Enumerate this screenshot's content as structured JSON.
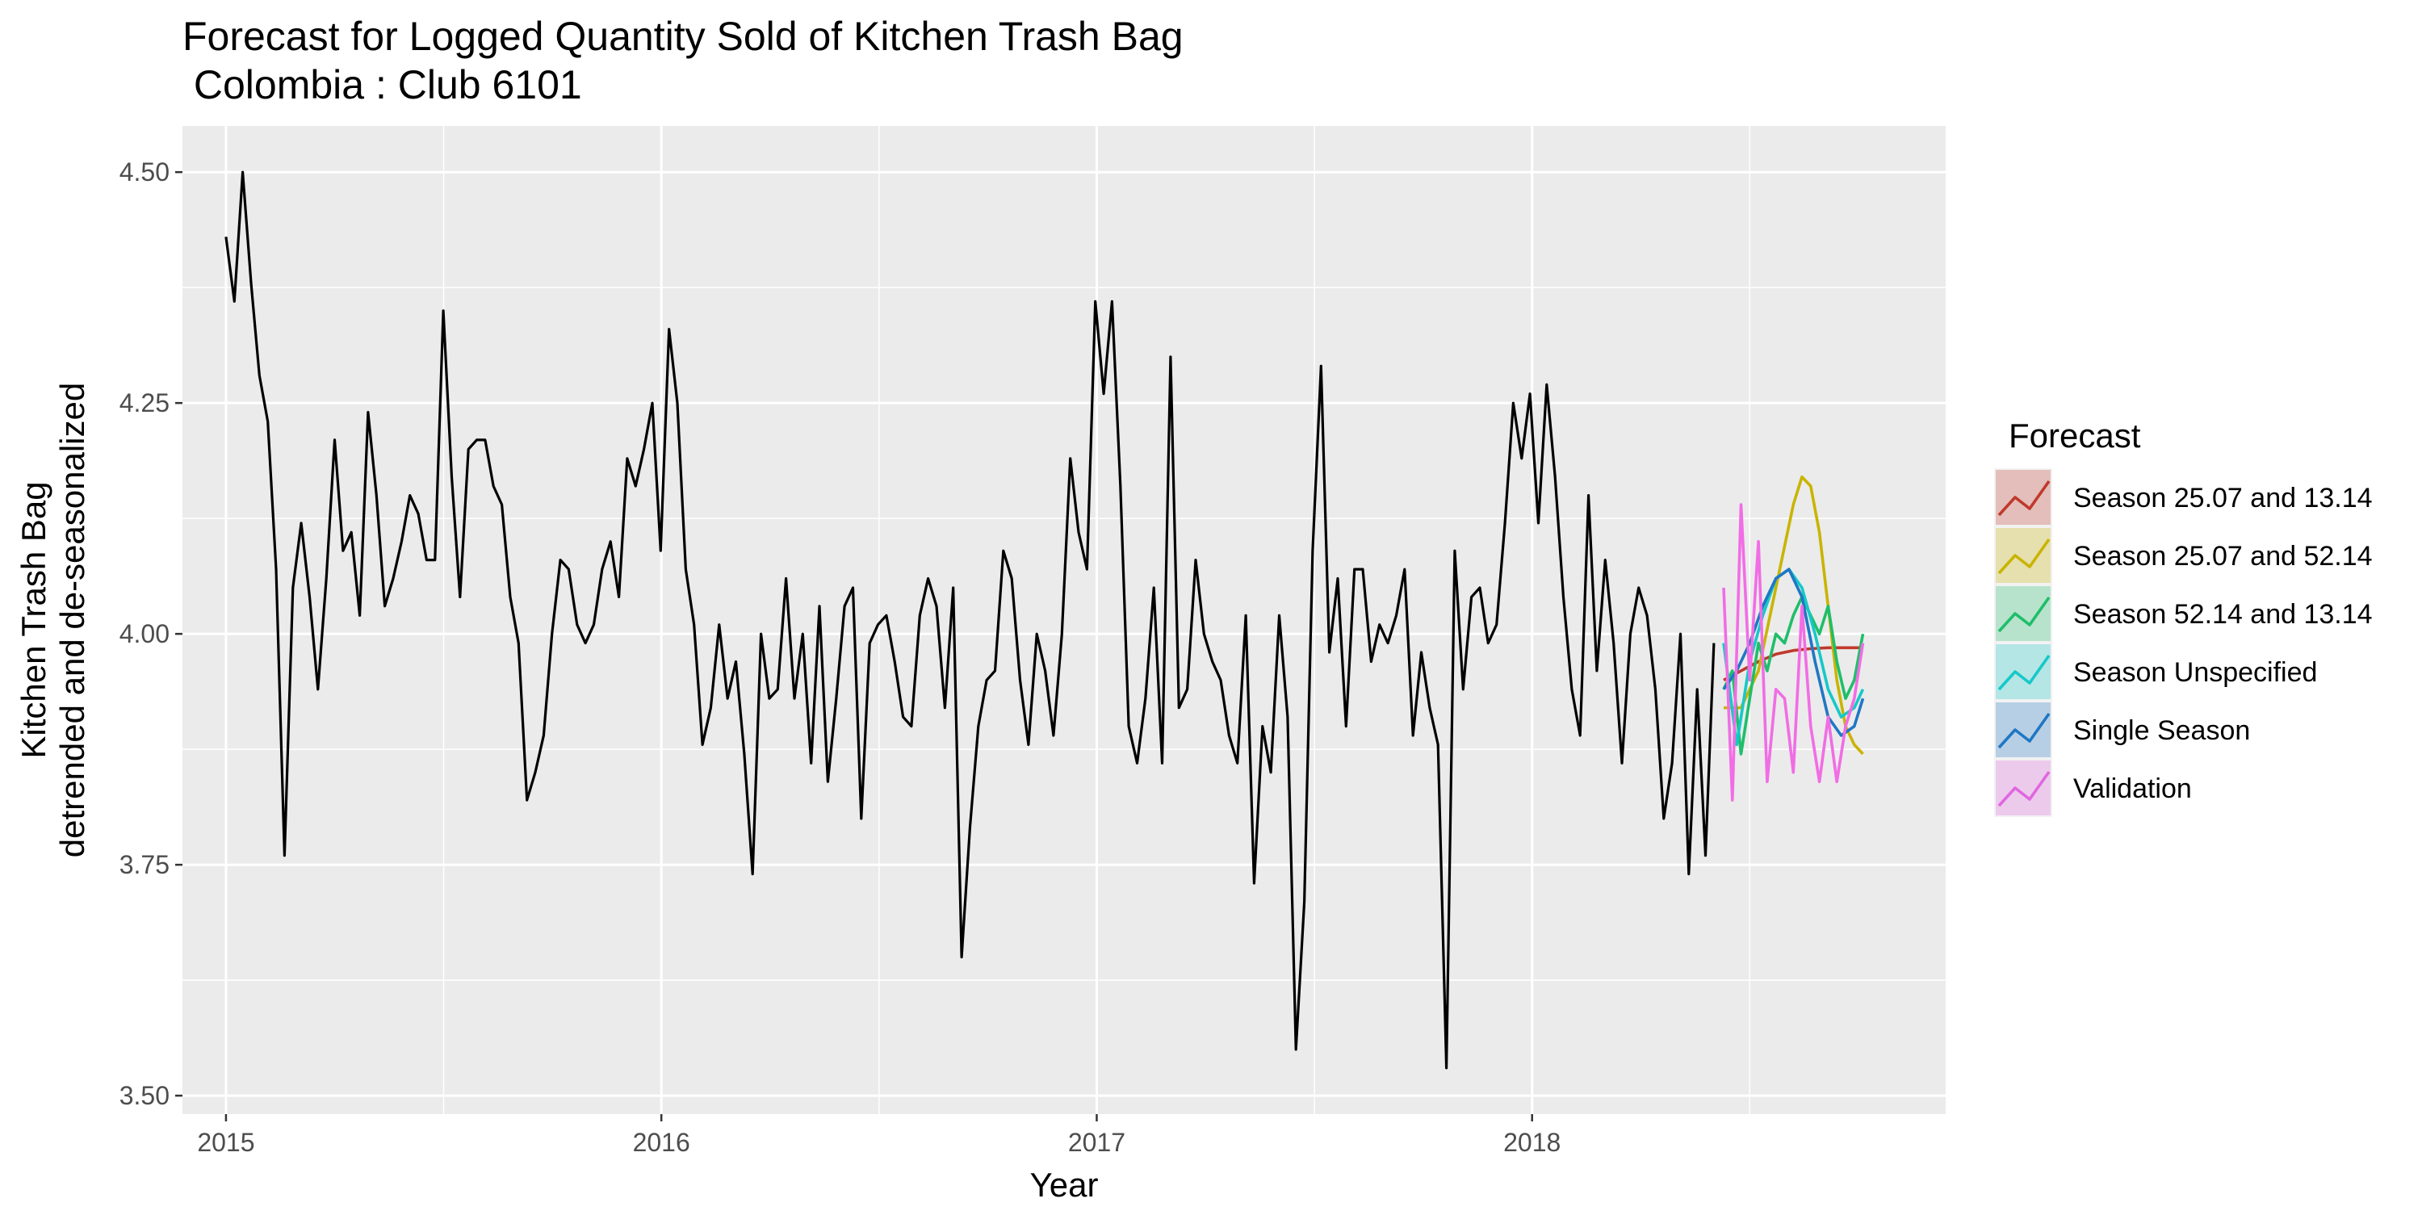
{
  "chart_data": {
    "type": "line",
    "title": "Forecast for Logged Quantity Sold of Kitchen Trash Bag",
    "subtitle": " Colombia : Club 6101",
    "xlabel": "Year",
    "ylabel_lines": [
      "Kitchen Trash Bag",
      "detrended and de-seasonalized"
    ],
    "xlim": [
      2014.9,
      2018.95
    ],
    "ylim": [
      3.48,
      4.55
    ],
    "x_ticks": [
      2015,
      2016,
      2017,
      2018
    ],
    "x_tick_labels": [
      "2015",
      "2016",
      "2017",
      "2018"
    ],
    "y_ticks": [
      3.5,
      3.75,
      4.0,
      4.25,
      4.5
    ],
    "y_tick_labels": [
      "3.50",
      "3.75",
      "4.00",
      "4.25",
      "4.50"
    ],
    "grid": true,
    "legend": {
      "title": "Forecast",
      "placement": "right",
      "entries": [
        {
          "label": "Season 25.07 and 13.14",
          "color": "#c0392b"
        },
        {
          "label": "Season 25.07 and 52.14",
          "color": "#c9b400"
        },
        {
          "label": "Season 52.14 and 13.14",
          "color": "#1fbe6a"
        },
        {
          "label": "Season Unspecified",
          "color": "#16c8c8"
        },
        {
          "label": "Single Season",
          "color": "#1f77c4"
        },
        {
          "label": "Validation",
          "color": "#e066e0"
        }
      ]
    },
    "history": {
      "color": "#000000",
      "start": 2015.0,
      "step": 0.0192,
      "values": [
        4.43,
        4.36,
        4.5,
        4.38,
        4.28,
        4.23,
        4.07,
        3.76,
        4.05,
        4.12,
        4.04,
        3.94,
        4.06,
        4.21,
        4.09,
        4.11,
        4.02,
        4.24,
        4.15,
        4.03,
        4.06,
        4.1,
        4.15,
        4.13,
        4.08,
        4.08,
        4.35,
        4.17,
        4.04,
        4.2,
        4.21,
        4.21,
        4.16,
        4.14,
        4.04,
        3.99,
        3.82,
        3.85,
        3.89,
        4.0,
        4.08,
        4.07,
        4.01,
        3.99,
        4.01,
        4.07,
        4.1,
        4.04,
        4.19,
        4.16,
        4.2,
        4.25,
        4.09,
        4.33,
        4.25,
        4.07,
        4.01,
        3.88,
        3.92,
        4.01,
        3.93,
        3.97,
        3.87,
        3.74,
        4.0,
        3.93,
        3.94,
        4.06,
        3.93,
        4.0,
        3.86,
        4.03,
        3.84,
        3.93,
        4.03,
        4.05,
        3.8,
        3.99,
        4.01,
        4.02,
        3.97,
        3.91,
        3.9,
        4.02,
        4.06,
        4.03,
        3.92,
        4.05,
        3.65,
        3.79,
        3.9,
        3.95,
        3.96,
        4.09,
        4.06,
        3.95,
        3.88,
        4.0,
        3.96,
        3.89,
        4.0,
        4.19,
        4.11,
        4.07,
        4.36,
        4.26,
        4.36,
        4.16,
        3.9,
        3.86,
        3.93,
        4.05,
        3.86,
        4.3,
        3.92,
        3.94,
        4.08,
        4.0,
        3.97,
        3.95,
        3.89,
        3.86,
        4.02,
        3.73,
        3.9,
        3.85,
        4.02,
        3.91,
        3.55,
        3.71,
        4.09,
        4.29,
        3.98,
        4.06,
        3.9,
        4.07,
        4.07,
        3.97,
        4.01,
        3.99,
        4.02,
        4.07,
        3.89,
        3.98,
        3.92,
        3.88,
        3.53,
        4.09,
        3.94,
        4.04,
        4.05,
        3.99,
        4.01,
        4.12,
        4.25,
        4.19,
        4.26,
        4.12,
        4.27,
        4.17,
        4.04,
        3.94,
        3.89,
        4.15,
        3.96,
        4.08,
        3.99,
        3.86,
        4.0,
        4.05,
        4.02,
        3.94,
        3.8,
        3.86,
        4.0,
        3.74,
        3.94,
        3.76,
        3.99
      ]
    },
    "series": [
      {
        "name": "Season 25.07 and 13.14",
        "color": "#c0392b",
        "x": [
          2018.44,
          2018.48,
          2018.52,
          2018.56,
          2018.6,
          2018.64,
          2018.68,
          2018.72,
          2018.76
        ],
        "values": [
          3.95,
          3.96,
          3.97,
          3.978,
          3.982,
          3.984,
          3.985,
          3.985,
          3.985
        ]
      },
      {
        "name": "Season 25.07 and 52.14",
        "color": "#c9b400",
        "x": [
          2018.44,
          2018.48,
          2018.52,
          2018.56,
          2018.6,
          2018.62,
          2018.64,
          2018.66,
          2018.68,
          2018.7,
          2018.72,
          2018.74,
          2018.76
        ],
        "values": [
          3.92,
          3.92,
          3.96,
          4.05,
          4.14,
          4.17,
          4.16,
          4.11,
          4.03,
          3.95,
          3.9,
          3.88,
          3.87
        ]
      },
      {
        "name": "Season 52.14 and 13.14",
        "color": "#1fbe6a",
        "x": [
          2018.44,
          2018.46,
          2018.48,
          2018.5,
          2018.52,
          2018.54,
          2018.56,
          2018.58,
          2018.6,
          2018.62,
          2018.64,
          2018.66,
          2018.68,
          2018.7,
          2018.72,
          2018.74,
          2018.76
        ],
        "values": [
          3.94,
          3.96,
          3.87,
          3.93,
          3.99,
          3.96,
          4.0,
          3.99,
          4.02,
          4.04,
          4.02,
          4.0,
          4.03,
          3.97,
          3.93,
          3.95,
          4.0
        ]
      },
      {
        "name": "Season Unspecified",
        "color": "#16c8c8",
        "x": [
          2018.44,
          2018.47,
          2018.5,
          2018.53,
          2018.56,
          2018.59,
          2018.62,
          2018.65,
          2018.68,
          2018.71,
          2018.74,
          2018.76
        ],
        "values": [
          3.99,
          3.88,
          3.97,
          4.02,
          4.06,
          4.07,
          4.05,
          4.0,
          3.94,
          3.91,
          3.92,
          3.94
        ]
      },
      {
        "name": "Single Season",
        "color": "#1f77c4",
        "x": [
          2018.44,
          2018.47,
          2018.5,
          2018.53,
          2018.56,
          2018.59,
          2018.62,
          2018.65,
          2018.68,
          2018.71,
          2018.74,
          2018.76
        ],
        "values": [
          3.94,
          3.96,
          3.99,
          4.03,
          4.06,
          4.07,
          4.04,
          3.97,
          3.91,
          3.89,
          3.9,
          3.93
        ]
      },
      {
        "name": "Validation",
        "color": "#f16de5",
        "x": [
          2018.44,
          2018.46,
          2018.48,
          2018.5,
          2018.52,
          2018.54,
          2018.56,
          2018.58,
          2018.6,
          2018.62,
          2018.64,
          2018.66,
          2018.68,
          2018.7,
          2018.72,
          2018.74,
          2018.76
        ],
        "values": [
          4.05,
          3.82,
          4.14,
          3.95,
          4.1,
          3.84,
          3.94,
          3.93,
          3.85,
          4.03,
          3.9,
          3.84,
          3.91,
          3.84,
          3.9,
          3.93,
          3.99
        ]
      }
    ]
  }
}
